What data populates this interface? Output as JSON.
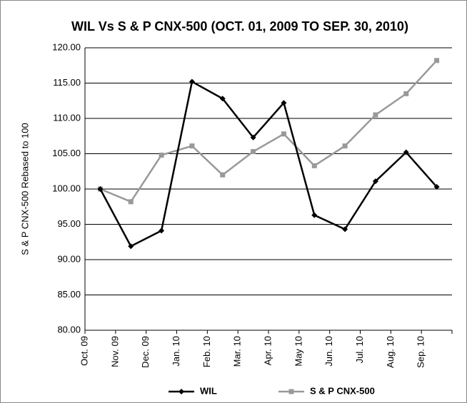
{
  "chart_data": {
    "type": "line",
    "title": "WIL Vs S & P CNX-500 (OCT. 01, 2009 TO SEP. 30, 2010)",
    "y_label": "S & P CNX-500 Rebased to 100",
    "categories": [
      "Oct. 09",
      "Nov. 09",
      "Dec. 09",
      "Jan. 10",
      "Feb. 10",
      "Mar. 10",
      "Apr. 10",
      "May 10",
      "Jun. 10",
      "Jul. 10",
      "Aug. 10",
      "Sep. 10"
    ],
    "series": [
      {
        "name": "WIL",
        "color": "#000000",
        "marker": "diamond",
        "values": [
          100,
          91.9,
          94.1,
          115.2,
          112.8,
          107.3,
          112.2,
          96.3,
          94.3,
          101.1,
          105.2,
          100.3
        ]
      },
      {
        "name": "S & P CNX-500",
        "color": "#999999",
        "marker": "square",
        "values": [
          100,
          98.2,
          104.8,
          106.1,
          102.0,
          105.3,
          107.8,
          103.3,
          106.1,
          110.5,
          113.5,
          118.2
        ]
      }
    ],
    "ylim": [
      80,
      120
    ],
    "yticks": [
      {
        "value": 80,
        "label": "80.00"
      },
      {
        "value": 85,
        "label": "85.00"
      },
      {
        "value": 90,
        "label": "90.00"
      },
      {
        "value": 95,
        "label": "95.00"
      },
      {
        "value": 100,
        "label": "100.00"
      },
      {
        "value": 105,
        "label": "105.00"
      },
      {
        "value": 110,
        "label": "110.00"
      },
      {
        "value": 115,
        "label": "115.00"
      },
      {
        "value": 120,
        "label": "120.00"
      }
    ],
    "grid": true,
    "legend": "bottom"
  }
}
